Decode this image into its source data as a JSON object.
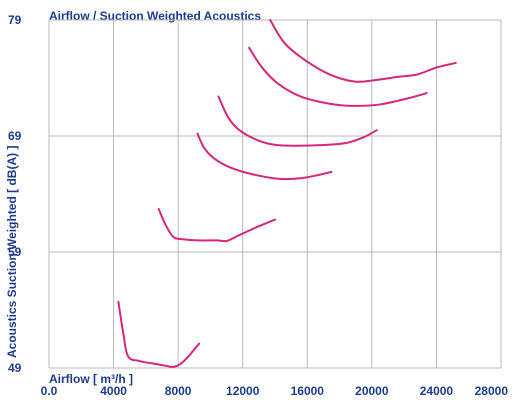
{
  "chart_data": {
    "type": "line",
    "title": "Airflow / Suction Weighted Acoustics",
    "xlabel": "Airflow [ m³/h ]",
    "ylabel": "Acoustics Suction Weighted [ dB(A) ]",
    "xlim": [
      0,
      28000
    ],
    "ylim": [
      49,
      79
    ],
    "x_ticks": [
      "0.0",
      "4000",
      "8000",
      "12000",
      "16000",
      "20000",
      "24000",
      "28000"
    ],
    "y_ticks": [
      "49",
      "59",
      "69",
      "79"
    ],
    "grid": true,
    "line_color": "#d6287a",
    "grid_color": "#b9b9b9",
    "text_color": "#1f3c8c",
    "series": [
      {
        "points": [
          [
            4300,
            54.7
          ],
          [
            4600,
            52.0
          ],
          [
            4900,
            50.0
          ],
          [
            5600,
            49.6
          ],
          [
            6400,
            49.4
          ],
          [
            7200,
            49.2
          ],
          [
            7700,
            49.1
          ],
          [
            8200,
            49.4
          ],
          [
            8700,
            50.1
          ],
          [
            9300,
            51.1
          ]
        ]
      },
      {
        "points": [
          [
            6800,
            62.7
          ],
          [
            7200,
            61.4
          ],
          [
            7700,
            60.3
          ],
          [
            8300,
            60.1
          ],
          [
            9300,
            60.0
          ],
          [
            10400,
            60.0
          ],
          [
            11000,
            59.95
          ],
          [
            11700,
            60.4
          ],
          [
            12800,
            61.1
          ],
          [
            14000,
            61.8
          ]
        ]
      },
      {
        "points": [
          [
            9200,
            69.2
          ],
          [
            9600,
            68.0
          ],
          [
            10200,
            67.1
          ],
          [
            11200,
            66.3
          ],
          [
            12600,
            65.7
          ],
          [
            14300,
            65.3
          ],
          [
            15800,
            65.4
          ],
          [
            17500,
            65.9
          ]
        ]
      },
      {
        "points": [
          [
            10500,
            72.4
          ],
          [
            11100,
            70.6
          ],
          [
            11800,
            69.5
          ],
          [
            13000,
            68.6
          ],
          [
            14300,
            68.2
          ],
          [
            16600,
            68.2
          ],
          [
            18400,
            68.4
          ],
          [
            19500,
            68.9
          ],
          [
            20300,
            69.5
          ]
        ]
      },
      {
        "points": [
          [
            12400,
            76.6
          ],
          [
            13200,
            74.9
          ],
          [
            14200,
            73.5
          ],
          [
            15600,
            72.4
          ],
          [
            17300,
            71.8
          ],
          [
            18700,
            71.6
          ],
          [
            20400,
            71.7
          ],
          [
            22100,
            72.2
          ],
          [
            23400,
            72.7
          ]
        ]
      },
      {
        "points": [
          [
            13700,
            79.0
          ],
          [
            14600,
            77.0
          ],
          [
            15900,
            75.5
          ],
          [
            17400,
            74.3
          ],
          [
            18900,
            73.7
          ],
          [
            20100,
            73.8
          ],
          [
            21600,
            74.1
          ],
          [
            22800,
            74.3
          ],
          [
            24000,
            74.9
          ],
          [
            25200,
            75.3
          ]
        ]
      }
    ]
  }
}
